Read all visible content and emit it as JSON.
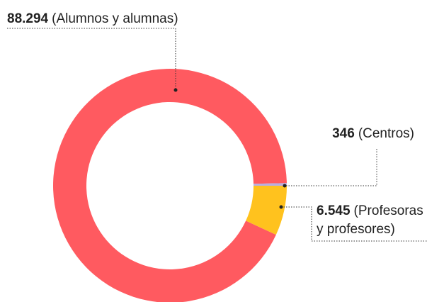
{
  "chart_data": {
    "type": "donut",
    "categories": [
      "(Alumnos y alumnas)",
      "(Centros)",
      "(Profesoras y profesores)"
    ],
    "values": [
      88294,
      346,
      6545
    ],
    "value_labels": [
      "88.294",
      "346",
      "6.545"
    ],
    "colors": [
      "#ff5a60",
      "#b8aee0",
      "#ffc21e"
    ]
  }
}
